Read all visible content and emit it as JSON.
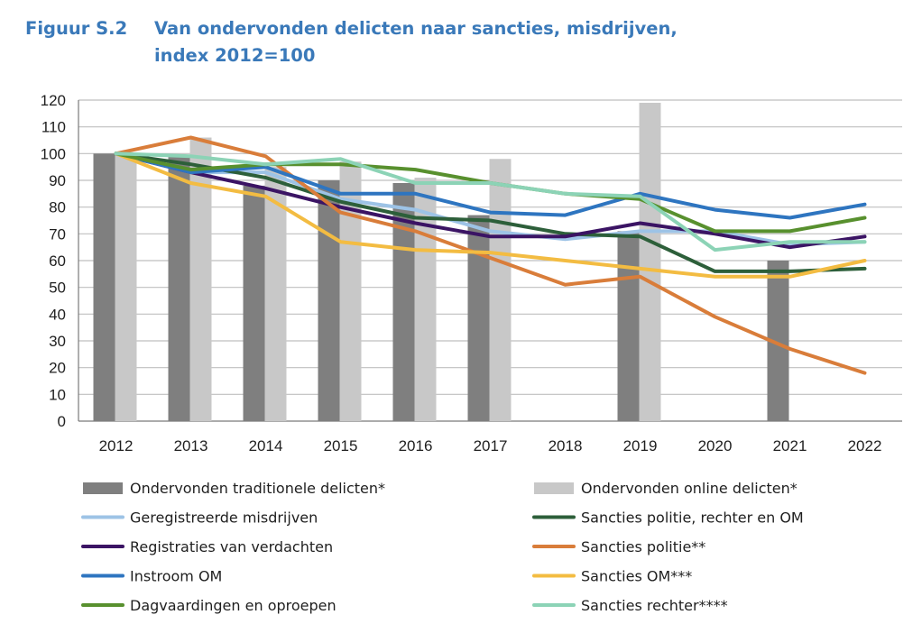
{
  "header": {
    "figure_label": "Figuur S.2",
    "title_line1": "Van ondervonden delicten naar sancties, misdrijven,",
    "title_line2": "index 2012=100"
  },
  "chart_data": {
    "type": "bar+line",
    "title": "Van ondervonden delicten naar sancties, misdrijven, index 2012=100",
    "xlabel": "",
    "ylabel": "",
    "ylim": [
      0,
      120
    ],
    "yticks": [
      0,
      10,
      20,
      30,
      40,
      50,
      60,
      70,
      80,
      90,
      100,
      110,
      120
    ],
    "grid": true,
    "categories": [
      "2012",
      "2013",
      "2014",
      "2015",
      "2016",
      "2017",
      "2018",
      "2019",
      "2020",
      "2021",
      "2022"
    ],
    "bar_series": [
      {
        "name": "Ondervonden traditionele delicten*",
        "color": "#7f7f7f",
        "values": [
          100,
          99,
          88,
          90,
          89,
          77,
          null,
          71,
          null,
          60,
          null
        ]
      },
      {
        "name": "Ondervonden online delicten*",
        "color": "#c8c8c8",
        "values": [
          100,
          106,
          95,
          97,
          91,
          98,
          null,
          119,
          null,
          null,
          null
        ]
      }
    ],
    "line_series": [
      {
        "name": "Geregistreerde misdrijven",
        "color": "#9dc3e6",
        "values": [
          100,
          93,
          93,
          83,
          79,
          71,
          68,
          71,
          71,
          66,
          67
        ]
      },
      {
        "name": "Sancties politie, rechter en OM",
        "color": "#2d5f3a",
        "values": [
          100,
          96,
          91,
          82,
          76,
          75,
          70,
          69,
          56,
          56,
          57
        ]
      },
      {
        "name": "Registraties van verdachten",
        "color": "#3b1464",
        "values": [
          100,
          93,
          87,
          80,
          74,
          69,
          69,
          74,
          70,
          65,
          69
        ]
      },
      {
        "name": "Sancties politie**",
        "color": "#d97d3a",
        "values": [
          100,
          106,
          99,
          78,
          71,
          61,
          51,
          54,
          39,
          27,
          18
        ]
      },
      {
        "name": "Instroom OM",
        "color": "#2e75c0",
        "values": [
          100,
          93,
          95,
          85,
          85,
          78,
          77,
          85,
          79,
          76,
          81
        ]
      },
      {
        "name": "Sancties OM***",
        "color": "#f3bc42",
        "values": [
          100,
          89,
          84,
          67,
          64,
          63,
          60,
          57,
          54,
          54,
          60
        ]
      },
      {
        "name": "Dagvaardingen en oproepen",
        "color": "#58902e",
        "values": [
          100,
          94,
          96,
          96,
          94,
          89,
          85,
          83,
          71,
          71,
          76
        ]
      },
      {
        "name": "Sancties rechter****",
        "color": "#8cd3b6",
        "values": [
          100,
          99,
          96,
          98,
          89,
          89,
          85,
          84,
          64,
          67,
          67
        ]
      }
    ],
    "legend": {
      "placement": "bottom",
      "items": [
        {
          "name": "Ondervonden traditionele delicten*",
          "kind": "bar",
          "color": "#7f7f7f"
        },
        {
          "name": "Ondervonden online delicten*",
          "kind": "bar",
          "color": "#c8c8c8"
        },
        {
          "name": "Geregistreerde misdrijven",
          "kind": "line",
          "color": "#9dc3e6"
        },
        {
          "name": "Sancties politie, rechter en OM",
          "kind": "line",
          "color": "#2d5f3a"
        },
        {
          "name": "Registraties van verdachten",
          "kind": "line",
          "color": "#3b1464"
        },
        {
          "name": "Sancties politie**",
          "kind": "line",
          "color": "#d97d3a"
        },
        {
          "name": "Instroom OM",
          "kind": "line",
          "color": "#2e75c0"
        },
        {
          "name": "Sancties OM***",
          "kind": "line",
          "color": "#f3bc42"
        },
        {
          "name": "Dagvaardingen en oproepen",
          "kind": "line",
          "color": "#58902e"
        },
        {
          "name": "Sancties rechter****",
          "kind": "line",
          "color": "#8cd3b6"
        }
      ]
    }
  }
}
